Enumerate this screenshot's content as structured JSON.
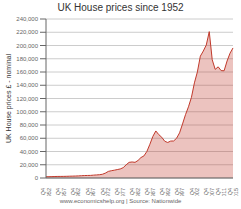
{
  "chart_data": {
    "type": "area",
    "title": "UK House prices since 1952",
    "ylabel": "UK House prices £ - nominal",
    "annotations": [
      "www.economicshelp.org | Source: Nationwide"
    ],
    "categories": [
      "Q4\n1952",
      null,
      null,
      null,
      null,
      "Q4\n1957",
      null,
      null,
      null,
      null,
      "Q4\n1962",
      null,
      null,
      null,
      null,
      "Q4\n1967",
      null,
      null,
      null,
      null,
      "Q4\n1972",
      null,
      null,
      null,
      null,
      "Q4\n1977",
      null,
      null,
      null,
      null,
      "Q4\n1982",
      null,
      null,
      null,
      null,
      "Q4\n1987",
      null,
      null,
      null,
      null,
      "Q4\n1992",
      null,
      null,
      null,
      null,
      "Q4\n1997",
      null,
      null,
      null,
      null,
      "Q4\n2002",
      null,
      null,
      null,
      null,
      "Q4\n2007",
      null,
      null,
      null,
      "Q4\n2011",
      null,
      null,
      null,
      "Q4\n2015"
    ],
    "values": [
      1891,
      1958,
      2082,
      2241,
      2380,
      2398,
      2430,
      2571,
      2712,
      2837,
      2973,
      3185,
      3472,
      3723,
      3840,
      3920,
      4311,
      4640,
      4975,
      5632,
      7374,
      9942,
      10990,
      11787,
      12704,
      13650,
      15594,
      19925,
      23596,
      24188,
      23644,
      26471,
      30899,
      33339,
      40179,
      50930,
      62782,
      70995,
      65471,
      61490,
      55479,
      53591,
      55740,
      55887,
      60039,
      68175,
      81619,
      95640,
      107478,
      121769,
      143620,
      160119,
      183959,
      191671,
      200786,
      220940,
      178430,
      163985,
      167802,
      162085,
      161823,
      176581,
      188374,
      196277
    ],
    "color": "#c0392b",
    "ylim": [
      0,
      240000
    ],
    "yticks": [
      0,
      {
        "value": 20000,
        "label": "20,000"
      },
      {
        "value": 40000,
        "label": "40,000"
      },
      {
        "value": 60000,
        "label": "60,000"
      },
      {
        "value": 80000,
        "label": "80,000"
      },
      {
        "value": 100000,
        "label": "100,000"
      },
      {
        "value": 120000,
        "label": "120,000"
      },
      {
        "value": 140000,
        "label": "140,000"
      },
      {
        "value": 160000,
        "label": "160,000"
      },
      {
        "value": 180000,
        "label": "180,000"
      },
      {
        "value": 200000,
        "label": "200,000"
      },
      {
        "value": 220000,
        "label": "220,000"
      },
      {
        "value": 240000,
        "label": "240,000"
      }
    ],
    "grid": true
  }
}
